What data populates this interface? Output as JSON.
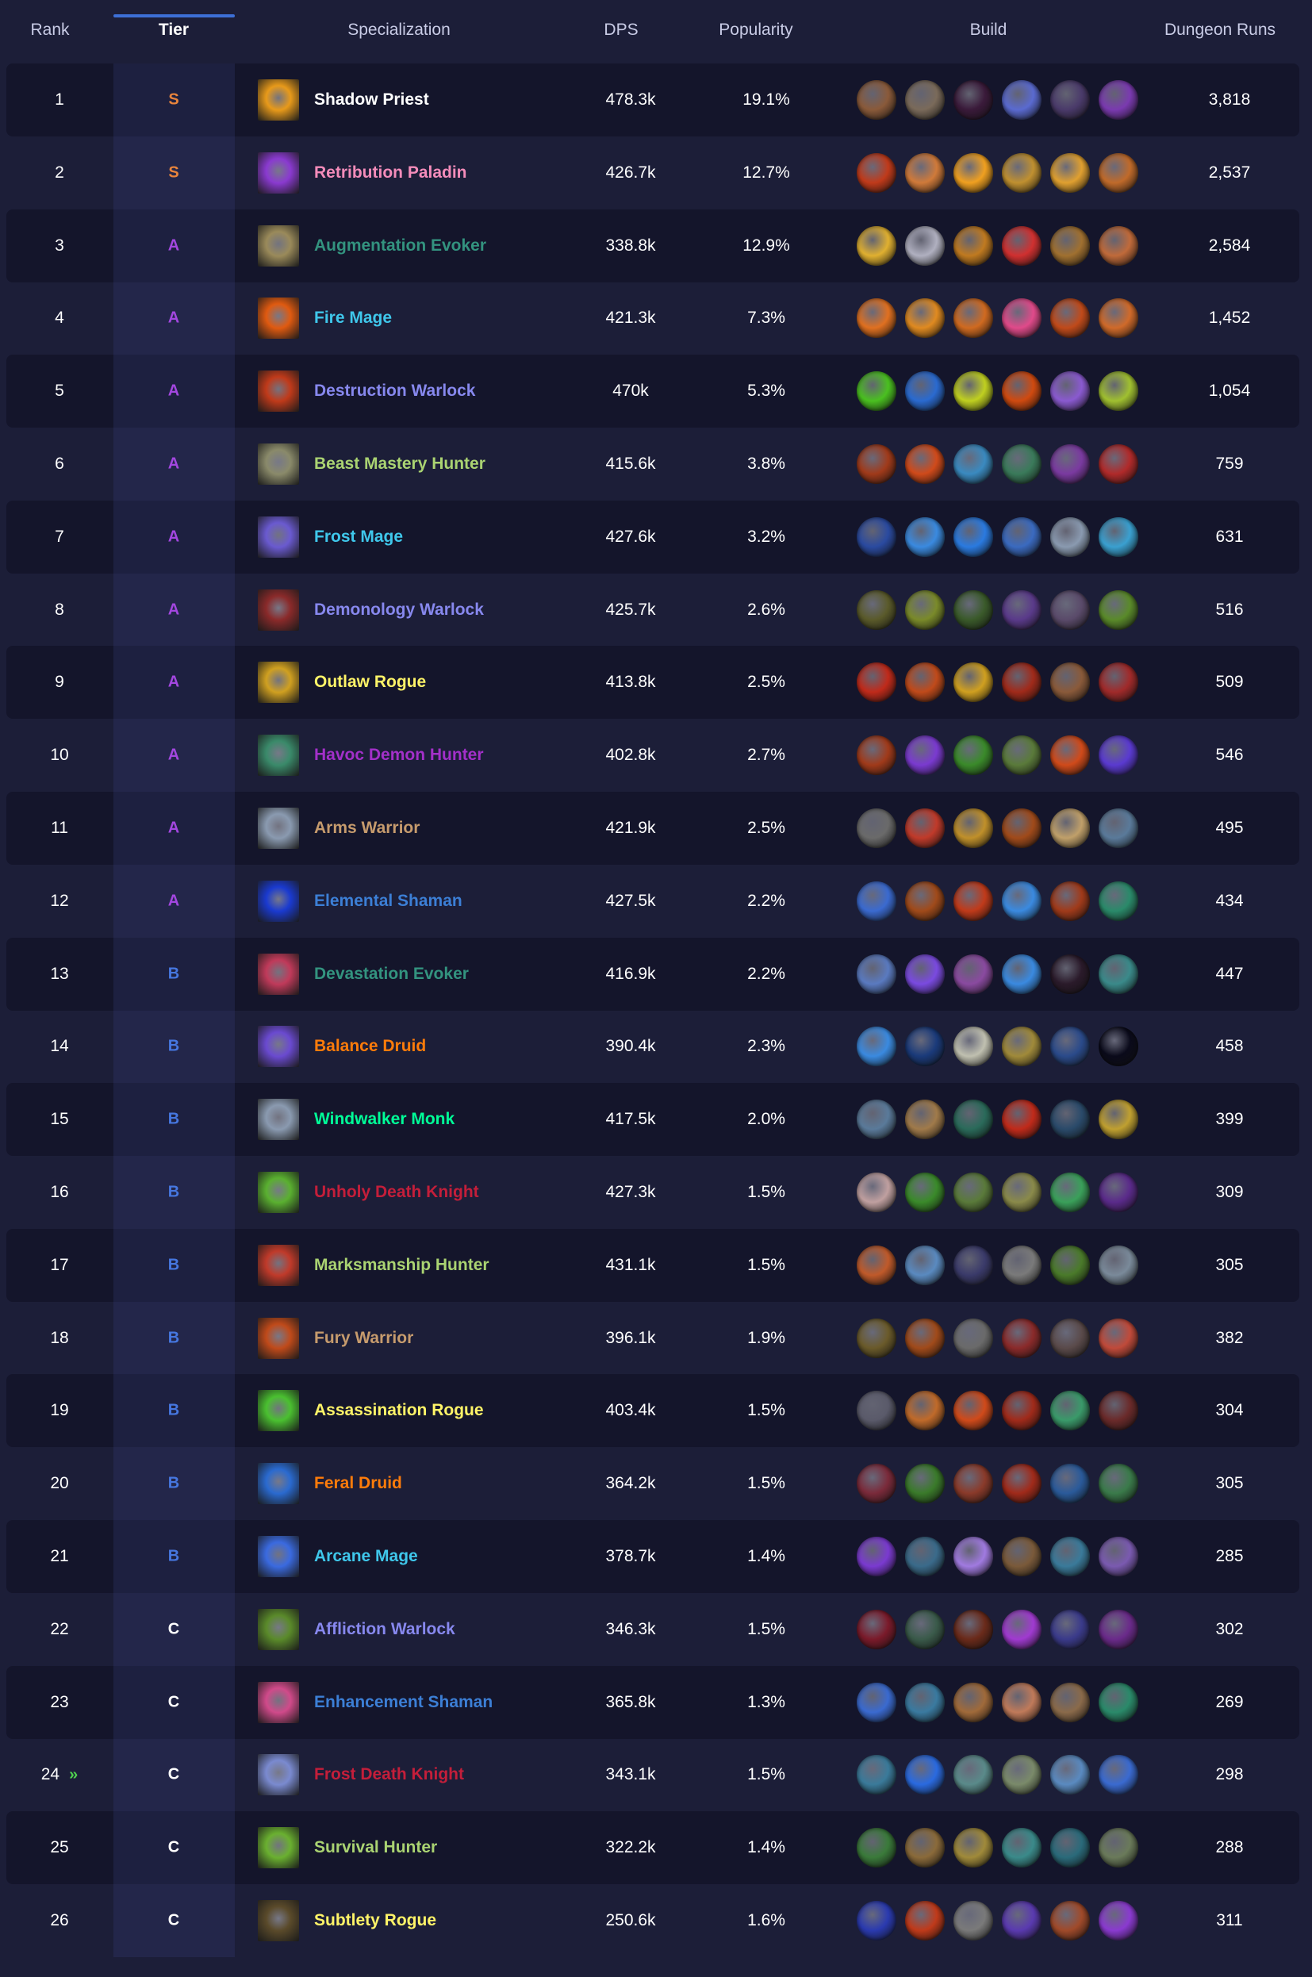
{
  "header": {
    "rank": "Rank",
    "tier": "Tier",
    "specialization": "Specialization",
    "dps": "DPS",
    "popularity": "Popularity",
    "build": "Build",
    "runs": "Dungeon Runs",
    "sorted_by": "Tier"
  },
  "tier_colors": {
    "S": "#e8843c",
    "A": "#a347e0",
    "B": "#4677e0",
    "C": "#ffffff"
  },
  "rows": [
    {
      "rank": "1",
      "tier": "S",
      "spec": "Shadow Priest",
      "color": "#ffffff",
      "icon": "#e89a1a",
      "dps": "478.3k",
      "pop": "19.1%",
      "runs": "3,818",
      "build": [
        "#8a5a3a",
        "#7a6a5a",
        "#3a1a3a",
        "#5a6ad0",
        "#4a3a6a",
        "#7a3ab0"
      ]
    },
    {
      "rank": "2",
      "tier": "S",
      "spec": "Retribution Paladin",
      "color": "#f48cba",
      "icon": "#8a3ad0",
      "dps": "426.7k",
      "pop": "12.7%",
      "runs": "2,537",
      "build": [
        "#c03a1a",
        "#d07a3a",
        "#f0a020",
        "#c09030",
        "#e0a030",
        "#c06a2a"
      ]
    },
    {
      "rank": "3",
      "tier": "A",
      "spec": "Augmentation Evoker",
      "color": "#33937f",
      "icon": "#9a8a5a",
      "dps": "338.8k",
      "pop": "12.9%",
      "runs": "2,584",
      "build": [
        "#e0b030",
        "#b0b0c0",
        "#c07a20",
        "#d03030",
        "#a07030",
        "#c06a3a"
      ]
    },
    {
      "rank": "4",
      "tier": "A",
      "spec": "Fire Mage",
      "color": "#3fc7eb",
      "icon": "#e05a10",
      "dps": "421.3k",
      "pop": "7.3%",
      "runs": "1,452",
      "build": [
        "#e07020",
        "#e08a20",
        "#d06a20",
        "#e04a8a",
        "#c04a1a",
        "#d06a2a"
      ]
    },
    {
      "rank": "5",
      "tier": "A",
      "spec": "Destruction Warlock",
      "color": "#8788ee",
      "icon": "#c03a1a",
      "dps": "470k",
      "pop": "5.3%",
      "runs": "1,054",
      "build": [
        "#4ac020",
        "#2a6ad0",
        "#c0d020",
        "#d04a10",
        "#8a5ad0",
        "#a0c030"
      ]
    },
    {
      "rank": "6",
      "tier": "A",
      "spec": "Beast Mastery Hunter",
      "color": "#aad372",
      "icon": "#8a8a6a",
      "dps": "415.6k",
      "pop": "3.8%",
      "runs": "759",
      "build": [
        "#a03a1a",
        "#d04a1a",
        "#3a8ac0",
        "#3a7a5a",
        "#7a3aa0",
        "#b02a2a"
      ]
    },
    {
      "rank": "7",
      "tier": "A",
      "spec": "Frost Mage",
      "color": "#3fc7eb",
      "icon": "#6a5ad0",
      "dps": "427.6k",
      "pop": "3.2%",
      "runs": "631",
      "build": [
        "#2a4aa0",
        "#3a8ae0",
        "#2a7ae0",
        "#3a6ac0",
        "#8a9ab0",
        "#3aa0d0"
      ]
    },
    {
      "rank": "8",
      "tier": "A",
      "spec": "Demonology Warlock",
      "color": "#8788ee",
      "icon": "#8a2a2a",
      "dps": "425.7k",
      "pop": "2.6%",
      "runs": "516",
      "build": [
        "#5a5a2a",
        "#7a8a2a",
        "#3a5a2a",
        "#5a3a8a",
        "#5a4a6a",
        "#5a8a2a"
      ]
    },
    {
      "rank": "9",
      "tier": "A",
      "spec": "Outlaw Rogue",
      "color": "#fff468",
      "icon": "#d0a020",
      "dps": "413.8k",
      "pop": "2.5%",
      "runs": "509",
      "build": [
        "#c02a1a",
        "#c04a1a",
        "#d0a020",
        "#a02a1a",
        "#8a5a3a",
        "#a02a2a"
      ]
    },
    {
      "rank": "10",
      "tier": "A",
      "spec": "Havoc Demon Hunter",
      "color": "#a330c9",
      "icon": "#3a8a6a",
      "dps": "402.8k",
      "pop": "2.7%",
      "runs": "546",
      "build": [
        "#a03a1a",
        "#7a3ad0",
        "#3a8a2a",
        "#5a7a3a",
        "#d04a1a",
        "#5a3ad0"
      ]
    },
    {
      "rank": "11",
      "tier": "A",
      "spec": "Arms Warrior",
      "color": "#c69b6d",
      "icon": "#8a9ab0",
      "dps": "421.9k",
      "pop": "2.5%",
      "runs": "495",
      "build": [
        "#6a6a6a",
        "#c03a2a",
        "#c0902a",
        "#a04a1a",
        "#c0a06a",
        "#5a7a9a"
      ]
    },
    {
      "rank": "12",
      "tier": "A",
      "spec": "Elemental Shaman",
      "color": "#3c7fd6",
      "icon": "#1a3ad0",
      "dps": "427.5k",
      "pop": "2.2%",
      "runs": "434",
      "build": [
        "#3a6ad0",
        "#a04a1a",
        "#c03a1a",
        "#3a8ae0",
        "#a03a1a",
        "#2a8a6a"
      ]
    },
    {
      "rank": "13",
      "tier": "B",
      "spec": "Devastation Evoker",
      "color": "#33937f",
      "icon": "#c03a5a",
      "dps": "416.9k",
      "pop": "2.2%",
      "runs": "447",
      "build": [
        "#5a7ac0",
        "#7a4ae0",
        "#8a4aa0",
        "#3a8ae0",
        "#2a1a2a",
        "#3a8a8a"
      ]
    },
    {
      "rank": "14",
      "tier": "B",
      "spec": "Balance Druid",
      "color": "#ff7c0a",
      "icon": "#6a4ad0",
      "dps": "390.4k",
      "pop": "2.3%",
      "runs": "458",
      "build": [
        "#3a8ae0",
        "#1a3a7a",
        "#c0c0b0",
        "#a08a3a",
        "#2a4a8a",
        "#0a0a1a"
      ]
    },
    {
      "rank": "15",
      "tier": "B",
      "spec": "Windwalker Monk",
      "color": "#00ff98",
      "icon": "#8a9ab0",
      "dps": "417.5k",
      "pop": "2.0%",
      "runs": "399",
      "build": [
        "#5a7a9a",
        "#a07a4a",
        "#2a6a5a",
        "#c02a1a",
        "#2a4a6a",
        "#c0a030"
      ]
    },
    {
      "rank": "16",
      "tier": "B",
      "spec": "Unholy Death Knight",
      "color": "#c41e3a",
      "icon": "#5ab030",
      "dps": "427.3k",
      "pop": "1.5%",
      "runs": "309",
      "build": [
        "#c0a0a0",
        "#3a8a2a",
        "#5a7a3a",
        "#8a8a4a",
        "#3aa05a",
        "#5a2a8a"
      ]
    },
    {
      "rank": "17",
      "tier": "B",
      "spec": "Marksmanship Hunter",
      "color": "#aad372",
      "icon": "#c03a2a",
      "dps": "431.1k",
      "pop": "1.5%",
      "runs": "305",
      "build": [
        "#c05a2a",
        "#5a8ac0",
        "#3a3a6a",
        "#7a7a7a",
        "#4a7a2a",
        "#7a8a9a"
      ]
    },
    {
      "rank": "18",
      "tier": "B",
      "spec": "Fury Warrior",
      "color": "#c69b6d",
      "icon": "#c04a1a",
      "dps": "396.1k",
      "pop": "1.9%",
      "runs": "382",
      "build": [
        "#6a5a2a",
        "#a04a1a",
        "#6a6a6a",
        "#8a2a2a",
        "#5a4a4a",
        "#c04a3a"
      ]
    },
    {
      "rank": "19",
      "tier": "B",
      "spec": "Assassination Rogue",
      "color": "#fff468",
      "icon": "#4ac030",
      "dps": "403.4k",
      "pop": "1.5%",
      "runs": "304",
      "build": [
        "#5a5a6a",
        "#c06a2a",
        "#d04a1a",
        "#a02a1a",
        "#3a9a6a",
        "#6a2a2a"
      ]
    },
    {
      "rank": "20",
      "tier": "B",
      "spec": "Feral Druid",
      "color": "#ff7c0a",
      "icon": "#2a6ad0",
      "dps": "364.2k",
      "pop": "1.5%",
      "runs": "305",
      "build": [
        "#7a2a3a",
        "#3a7a2a",
        "#8a3a2a",
        "#a02a1a",
        "#2a5a9a",
        "#3a7a4a"
      ]
    },
    {
      "rank": "21",
      "tier": "B",
      "spec": "Arcane Mage",
      "color": "#3fc7eb",
      "icon": "#3a6ae0",
      "dps": "378.7k",
      "pop": "1.4%",
      "runs": "285",
      "build": [
        "#7a3ad0",
        "#3a6a8a",
        "#a07ae0",
        "#7a5a3a",
        "#3a7a9a",
        "#7a5ab0"
      ]
    },
    {
      "rank": "22",
      "tier": "C",
      "spec": "Affliction Warlock",
      "color": "#8788ee",
      "icon": "#5a8a2a",
      "dps": "346.3k",
      "pop": "1.5%",
      "runs": "302",
      "build": [
        "#7a1a2a",
        "#3a5a4a",
        "#6a2a1a",
        "#a03ad0",
        "#3a3a8a",
        "#6a2a8a"
      ]
    },
    {
      "rank": "23",
      "tier": "C",
      "spec": "Enhancement Shaman",
      "color": "#3c7fd6",
      "icon": "#d04a8a",
      "dps": "365.8k",
      "pop": "1.3%",
      "runs": "269",
      "build": [
        "#3a6ad0",
        "#3a7aa0",
        "#a06a3a",
        "#c07a5a",
        "#8a6a4a",
        "#2a8a6a"
      ]
    },
    {
      "rank": "24",
      "tier": "C",
      "spec": "Frost Death Knight",
      "color": "#c41e3a",
      "icon": "#7a8ad0",
      "dps": "343.1k",
      "pop": "1.5%",
      "runs": "298",
      "up": "»",
      "build": [
        "#3a7a9a",
        "#2a6ae0",
        "#5a8a8a",
        "#7a8a6a",
        "#5a8ac0",
        "#3a6ad0"
      ]
    },
    {
      "rank": "25",
      "tier": "C",
      "spec": "Survival Hunter",
      "color": "#aad372",
      "icon": "#6ab030",
      "dps": "322.2k",
      "pop": "1.4%",
      "runs": "288",
      "build": [
        "#3a7a3a",
        "#8a6a3a",
        "#a08a3a",
        "#3a8a8a",
        "#2a6a7a",
        "#6a7a5a"
      ]
    },
    {
      "rank": "26",
      "tier": "C",
      "spec": "Subtlety Rogue",
      "color": "#fff468",
      "icon": "#5a4a2a",
      "dps": "250.6k",
      "pop": "1.6%",
      "runs": "311",
      "build": [
        "#2a3ab0",
        "#c03a1a",
        "#7a7a7a",
        "#5a3ab0",
        "#a04a2a",
        "#8a3ad0"
      ]
    }
  ]
}
